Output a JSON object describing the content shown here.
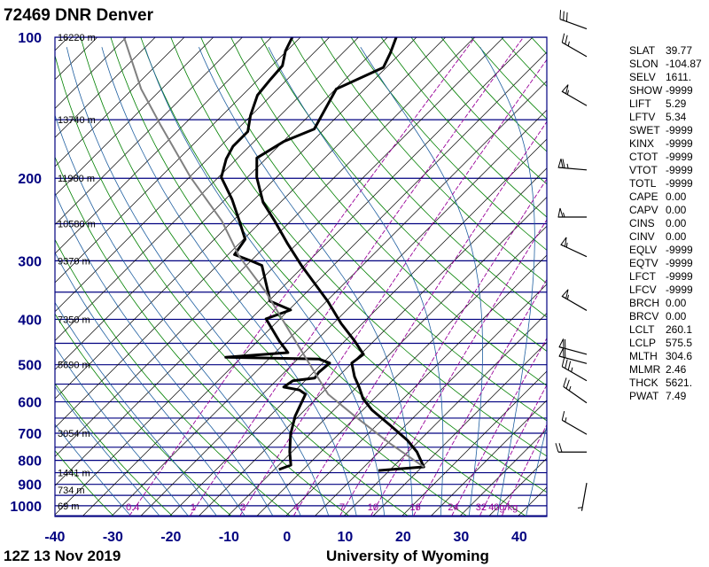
{
  "title": "72469 DNR Denver",
  "footer": {
    "time": "12Z 13 Nov 2019",
    "credit": "University of Wyoming"
  },
  "colors": {
    "axis": "#000080",
    "isotherm": "#000000",
    "dry_adiabat": "#008000",
    "moist_adiabat": "#1f5fa0",
    "mixing_ratio": "#990099",
    "profile": "#000000",
    "parcel": "#808080"
  },
  "chart_data": {
    "type": "line",
    "diagram": "skew-T log-p",
    "y_scale": "log",
    "ylim": [
      1050,
      100
    ],
    "xlim": [
      -40,
      45
    ],
    "grid": true,
    "pressure_ticks": [
      100,
      200,
      300,
      400,
      500,
      600,
      700,
      800,
      900,
      1000
    ],
    "pressure_tick_labels": [
      "100",
      "200",
      "300",
      "400",
      "500",
      "600",
      "700",
      "800",
      "900",
      "1000"
    ],
    "temperature_ticks": [
      -40,
      -30,
      -20,
      -10,
      0,
      10,
      20,
      30,
      40
    ],
    "temperature_tick_labels": [
      "-40",
      "-30",
      "-20",
      "-10",
      "0",
      "10",
      "20",
      "30",
      "40"
    ],
    "isobars_every_hpa": 50,
    "isotherms_every_c": 5,
    "height_labels": [
      {
        "p": 100,
        "label": "16220 m"
      },
      {
        "p": 150,
        "label": "13740 m"
      },
      {
        "p": 200,
        "label": "11980 m"
      },
      {
        "p": 250,
        "label": "10580 m"
      },
      {
        "p": 300,
        "label": "9370 m"
      },
      {
        "p": 400,
        "label": "7350 m"
      },
      {
        "p": 500,
        "label": "5690 m"
      },
      {
        "p": 700,
        "label": "3054 m"
      },
      {
        "p": 850,
        "label": "1441 m"
      },
      {
        "p": 925,
        "label": "734 m"
      },
      {
        "p": 1000,
        "label": "69 m"
      }
    ],
    "mixing_ratio_values": [
      0.4,
      1,
      2,
      4,
      7,
      10,
      16,
      24,
      32,
      40
    ],
    "mixing_ratio_labels": [
      "0.4",
      "1",
      "2",
      "4",
      "7",
      "10",
      "16",
      "24",
      "32",
      "40g/kg"
    ],
    "series": [
      {
        "key": "temperature",
        "p": [
          841,
          826,
          767,
          725,
          673,
          625,
          591,
          558,
          530,
          496,
          475,
          445,
          408,
          366,
          307,
          276,
          247,
          225,
          199,
          181,
          167,
          157,
          129,
          116,
          108,
          100
        ],
        "t": [
          8.1,
          15.3,
          11.5,
          7.9,
          2.3,
          -3.4,
          -6.9,
          -9.6,
          -12.2,
          -15.0,
          -14.5,
          -18.3,
          -23.7,
          -29.8,
          -40.5,
          -46.6,
          -52.7,
          -58.0,
          -63.4,
          -66.7,
          -64.9,
          -61.8,
          -64.9,
          -60.5,
          -61.8,
          -63.5
        ]
      },
      {
        "key": "dewpoint",
        "p": [
          837,
          819,
          767,
          703,
          644,
          604,
          578,
          566,
          558,
          541,
          534,
          519,
          496,
          486,
          482,
          471,
          445,
          399,
          382,
          366,
          307,
          301,
          291,
          270,
          247,
          222,
          199,
          182,
          171,
          159,
          147,
          133,
          123,
          115,
          107,
          100
        ],
        "t": [
          -9.2,
          -7.9,
          -10.4,
          -13.3,
          -15.6,
          -16.8,
          -17.6,
          -19.4,
          -22.6,
          -22.1,
          -18.8,
          -19.1,
          -18.8,
          -21.4,
          -37.7,
          -27.8,
          -31.3,
          -37.4,
          -34.7,
          -39.7,
          -47.3,
          -49.6,
          -53.9,
          -54.7,
          -58.8,
          -63.8,
          -69.5,
          -71.8,
          -72.8,
          -72.8,
          -75.1,
          -77.4,
          -77.9,
          -78.2,
          -80.2,
          -81.4
        ]
      },
      {
        "key": "parcel",
        "p": [
          826,
          735,
          644,
          578,
          435,
          350,
          294,
          247,
          199,
          153,
          129,
          100
        ],
        "t": [
          15.3,
          5.3,
          -5.3,
          -13.7,
          -29.8,
          -42.0,
          -52.7,
          -61.8,
          -74.8,
          -89.3,
          -98.5,
          -110.4
        ]
      }
    ],
    "wind_barbs": [
      {
        "p": 96,
        "dir": 290,
        "speed_kt": 30
      },
      {
        "p": 110,
        "dir": 300,
        "speed_kt": 25
      },
      {
        "p": 140,
        "dir": 300,
        "speed_kt": 55
      },
      {
        "p": 192,
        "dir": 275,
        "speed_kt": 65
      },
      {
        "p": 242,
        "dir": 270,
        "speed_kt": 55
      },
      {
        "p": 294,
        "dir": 295,
        "speed_kt": 55
      },
      {
        "p": 383,
        "dir": 300,
        "speed_kt": 55
      },
      {
        "p": 475,
        "dir": 285,
        "speed_kt": 60
      },
      {
        "p": 497,
        "dir": 285,
        "speed_kt": 60
      },
      {
        "p": 541,
        "dir": 300,
        "speed_kt": 35
      },
      {
        "p": 603,
        "dir": 305,
        "speed_kt": 25
      },
      {
        "p": 704,
        "dir": 300,
        "speed_kt": 15
      },
      {
        "p": 768,
        "dir": 270,
        "speed_kt": 20
      },
      {
        "p": 894,
        "dir": 190,
        "speed_kt": 5
      }
    ]
  },
  "indices": [
    {
      "name": "SLAT",
      "value": "39.77"
    },
    {
      "name": "SLON",
      "value": "-104.87"
    },
    {
      "name": "SELV",
      "value": "1611."
    },
    {
      "name": "SHOW",
      "value": "-9999"
    },
    {
      "name": "LIFT",
      "value": "5.29"
    },
    {
      "name": "LFTV",
      "value": "5.34"
    },
    {
      "name": "SWET",
      "value": "-9999"
    },
    {
      "name": "KINX",
      "value": "-9999"
    },
    {
      "name": "CTOT",
      "value": "-9999"
    },
    {
      "name": "VTOT",
      "value": "-9999"
    },
    {
      "name": "TOTL",
      "value": "-9999"
    },
    {
      "name": "CAPE",
      "value": "0.00"
    },
    {
      "name": "CAPV",
      "value": "0.00"
    },
    {
      "name": "CINS",
      "value": "0.00"
    },
    {
      "name": "CINV",
      "value": "0.00"
    },
    {
      "name": "EQLV",
      "value": "-9999"
    },
    {
      "name": "EQTV",
      "value": "-9999"
    },
    {
      "name": "LFCT",
      "value": "-9999"
    },
    {
      "name": "LFCV",
      "value": "-9999"
    },
    {
      "name": "BRCH",
      "value": "0.00"
    },
    {
      "name": "BRCV",
      "value": "0.00"
    },
    {
      "name": "LCLT",
      "value": "260.1"
    },
    {
      "name": "LCLP",
      "value": "575.5"
    },
    {
      "name": "MLTH",
      "value": "304.6"
    },
    {
      "name": "MLMR",
      "value": "2.46"
    },
    {
      "name": "THCK",
      "value": "5621."
    },
    {
      "name": "PWAT",
      "value": "7.49"
    }
  ]
}
